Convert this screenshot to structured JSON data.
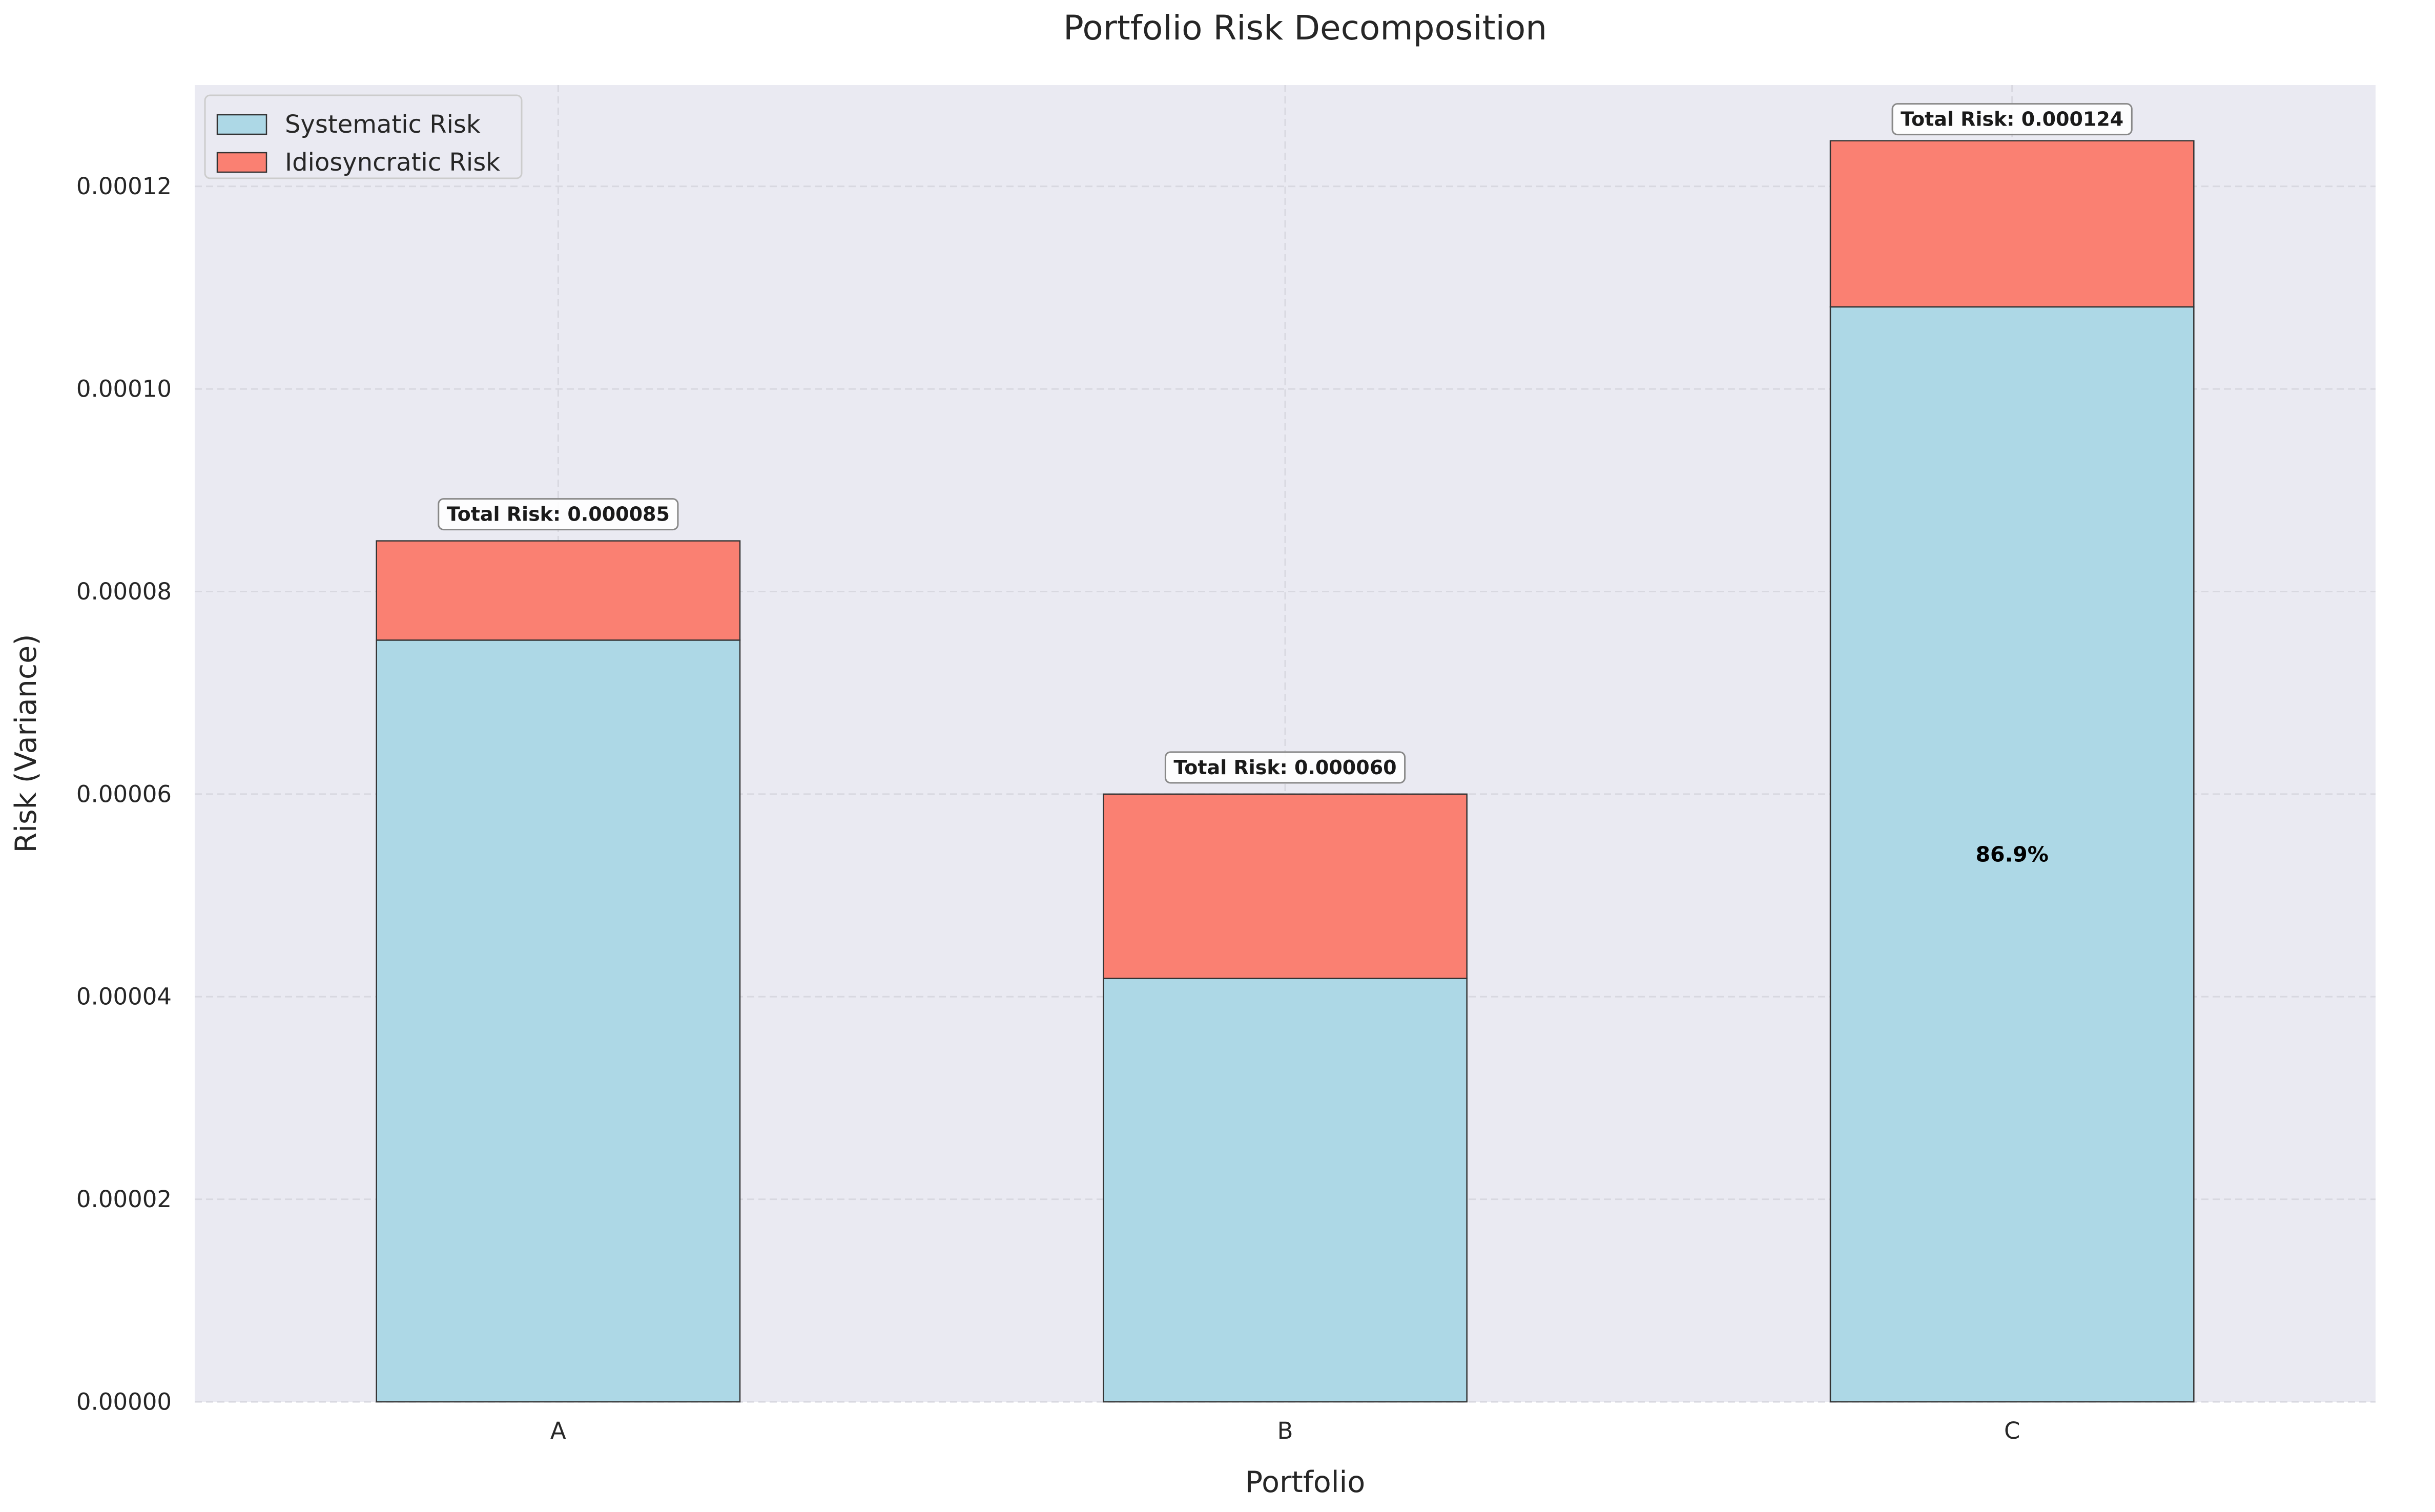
{
  "chart_data": {
    "type": "bar",
    "stacked": true,
    "title": "Portfolio Risk Decomposition",
    "xlabel": "Portfolio",
    "ylabel": "Risk (Variance)",
    "categories": [
      "A",
      "B",
      "C"
    ],
    "series": [
      {
        "name": "Systematic Risk",
        "color": "#add8e6",
        "values": [
          7.52e-05,
          4.18e-05,
          0.0001081
        ]
      },
      {
        "name": "Idiosyncratic Risk",
        "color": "#fa8072",
        "values": [
          9.8e-06,
          1.82e-05,
          1.64e-05
        ]
      }
    ],
    "totals": [
      8.5e-05,
      6e-05,
      0.000124
    ],
    "total_labels": [
      "Total Risk: 0.000085",
      "Total Risk: 0.000060",
      "Total Risk: 0.000124"
    ],
    "segment_labels": [
      "",
      "",
      "86.9%"
    ],
    "ylim": [
      0,
      0.00013
    ],
    "yticks": [
      0,
      2e-05,
      4e-05,
      6e-05,
      8e-05,
      0.0001,
      0.00012
    ],
    "ytick_labels": [
      "0.00000",
      "0.00002",
      "0.00004",
      "0.00006",
      "0.00008",
      "0.00010",
      "0.00012"
    ],
    "grid": true,
    "legend_position": "top-left",
    "plot_background": "#eaeaf2",
    "edge_color": "#333333"
  }
}
